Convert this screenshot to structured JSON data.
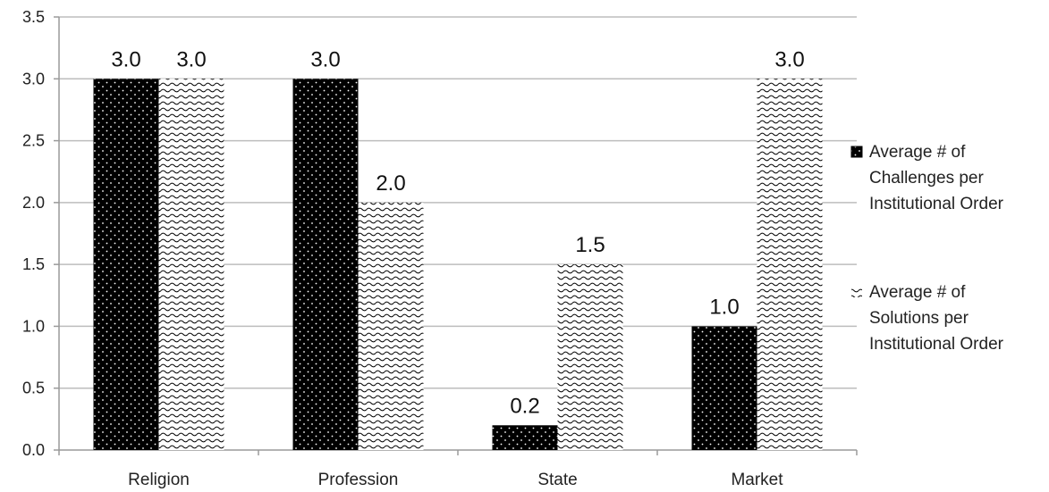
{
  "chart_data": {
    "type": "bar",
    "categories": [
      "Religion",
      "Profession",
      "State",
      "Market"
    ],
    "series": [
      {
        "name": "Average # of Challenges per Institutional Order",
        "name_lines": [
          "Average # of",
          "Challenges per",
          "Institutional Order"
        ],
        "values": [
          3.0,
          3.0,
          0.2,
          1.0
        ],
        "value_labels": [
          "3.0",
          "3.0",
          "0.2",
          "1.0"
        ],
        "fill": "dots-on-black"
      },
      {
        "name": "Average # of Solutions per Institutional Order",
        "name_lines": [
          "Average # of",
          "Solutions per",
          "Institutional Order"
        ],
        "values": [
          3.0,
          2.0,
          1.5,
          3.0
        ],
        "value_labels": [
          "3.0",
          "2.0",
          "1.5",
          "3.0"
        ],
        "fill": "waves-on-white"
      }
    ],
    "title": "",
    "xlabel": "",
    "ylabel": "",
    "ylim": [
      0,
      3.5
    ],
    "yticks": [
      "0.0",
      "0.5",
      "1.0",
      "1.5",
      "2.0",
      "2.5",
      "3.0",
      "3.5"
    ],
    "grid": true,
    "legend_position": "right",
    "colors": {
      "dark": "#000000",
      "light": "#ffffff",
      "grid": "#bdbdbd"
    }
  }
}
